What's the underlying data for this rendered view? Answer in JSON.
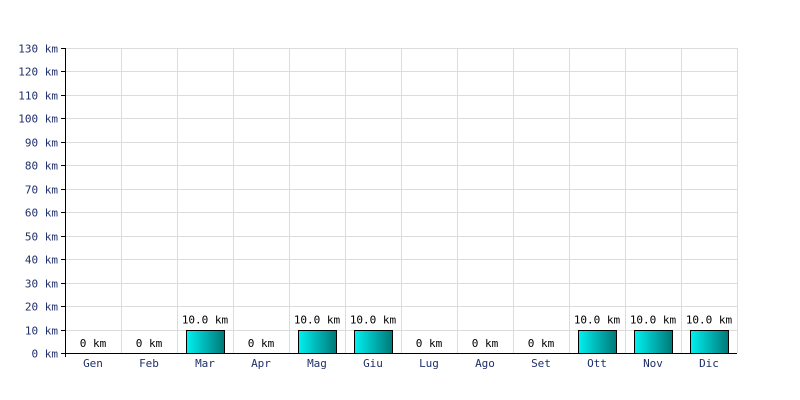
{
  "chart_data": {
    "type": "bar",
    "categories": [
      "Gen",
      "Feb",
      "Mar",
      "Apr",
      "Mag",
      "Giu",
      "Lug",
      "Ago",
      "Set",
      "Ott",
      "Nov",
      "Dic"
    ],
    "values": [
      0,
      0,
      10,
      0,
      10,
      10,
      0,
      0,
      0,
      10,
      10,
      10
    ],
    "data_labels": [
      "0 km",
      "0 km",
      "10.0 km",
      "0 km",
      "10.0 km",
      "10.0 km",
      "0 km",
      "0 km",
      "0 km",
      "10.0 km",
      "10.0 km",
      "10.0 km"
    ],
    "y_ticks": [
      "0 km",
      "10 km",
      "20 km",
      "30 km",
      "40 km",
      "50 km",
      "60 km",
      "70 km",
      "80 km",
      "90 km",
      "100 km",
      "110 km",
      "120 km",
      "130 km"
    ],
    "ylim": [
      0,
      130
    ],
    "y_step": 10,
    "grid": true,
    "title": "",
    "xlabel": "",
    "ylabel": ""
  },
  "colors": {
    "bar_light": "#00f0f0",
    "bar_dark": "#007878",
    "bar_outline": "#000000",
    "grid": "#dcdcdc",
    "tick_text": "#1f2f6b"
  }
}
